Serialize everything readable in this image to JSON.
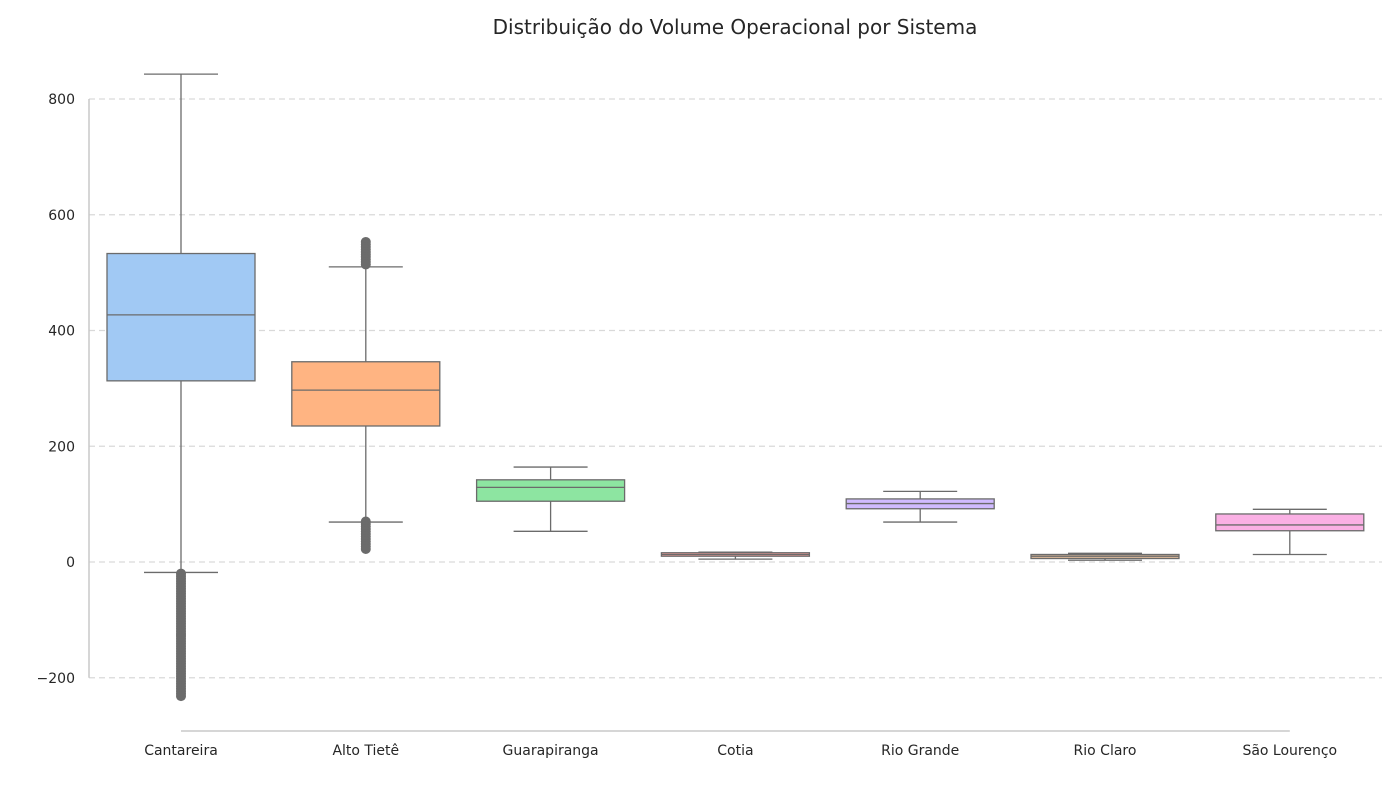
{
  "chart_data": {
    "type": "box",
    "title": "Distribuição do Volume Operacional por Sistema",
    "xlabel": "",
    "ylabel": "",
    "ylim": [
      -290,
      890
    ],
    "yticks": [
      800,
      600,
      400,
      200,
      0,
      -200
    ],
    "ytick_labels": [
      "800",
      "600",
      "400",
      "200",
      "0",
      "−200"
    ],
    "grid": "horizontal-dashed",
    "categories": [
      "Cantareira",
      "Alto Tietê",
      "Guarapiranga",
      "Cotia",
      "Rio Grande",
      "Rio Claro",
      "São Lourenço"
    ],
    "colors": [
      "#a1c9f4",
      "#ffb482",
      "#8de5a1",
      "#ff9f9b",
      "#d0bbff",
      "#debb9b",
      "#fab0e4"
    ],
    "boxes": [
      {
        "whisker_low": -18,
        "q1": 313,
        "median": 427,
        "q3": 533,
        "whisker_high": 843,
        "fliers_low": [
          -20,
          -235
        ],
        "fliers_high": []
      },
      {
        "whisker_low": 69,
        "q1": 235,
        "median": 297,
        "q3": 346,
        "whisker_high": 510,
        "fliers_low": [
          22,
          70
        ],
        "fliers_high": [
          510,
          553
        ]
      },
      {
        "whisker_low": 53,
        "q1": 105,
        "median": 129,
        "q3": 142,
        "whisker_high": 164,
        "fliers_low": [],
        "fliers_high": []
      },
      {
        "whisker_low": 5,
        "q1": 10,
        "median": 13,
        "q3": 16,
        "whisker_high": 17,
        "fliers_low": [],
        "fliers_high": []
      },
      {
        "whisker_low": 69,
        "q1": 92,
        "median": 101,
        "q3": 109,
        "whisker_high": 122,
        "fliers_low": [],
        "fliers_high": []
      },
      {
        "whisker_low": 3,
        "q1": 6,
        "median": 10,
        "q3": 13,
        "whisker_high": 15,
        "fliers_low": [],
        "fliers_high": []
      },
      {
        "whisker_low": 13,
        "q1": 54,
        "median": 64,
        "q3": 83,
        "whisker_high": 91,
        "fliers_low": [],
        "fliers_high": []
      }
    ]
  }
}
